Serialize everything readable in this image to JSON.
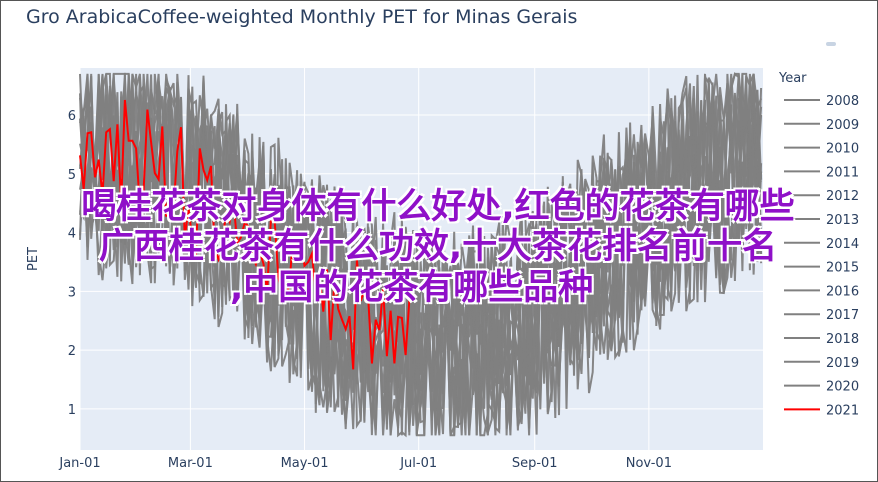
{
  "chart_data": {
    "type": "line",
    "title": "Gro ArabicaCoffee-weighted Monthly PET for Minas Gerais",
    "ylabel": "PET",
    "xlabel": "",
    "x_ticks": [
      "Jan-01",
      "Mar-01",
      "May-01",
      "Jul-01",
      "Sep-01",
      "Nov-01"
    ],
    "y_ticks": [
      1,
      2,
      3,
      4,
      5,
      6
    ],
    "ylim": [
      0.3,
      6.8
    ],
    "xlim_days": [
      0,
      365
    ],
    "legend_title": "Year",
    "legend_position": "right",
    "grid": true,
    "series": [
      {
        "name": "2008",
        "color": "#808080"
      },
      {
        "name": "2009",
        "color": "#808080"
      },
      {
        "name": "2010",
        "color": "#808080"
      },
      {
        "name": "2011",
        "color": "#808080"
      },
      {
        "name": "2012",
        "color": "#808080"
      },
      {
        "name": "2013",
        "color": "#808080"
      },
      {
        "name": "2014",
        "color": "#808080"
      },
      {
        "name": "2015",
        "color": "#808080"
      },
      {
        "name": "2016",
        "color": "#808080"
      },
      {
        "name": "2017",
        "color": "#808080"
      },
      {
        "name": "2018",
        "color": "#808080"
      },
      {
        "name": "2019",
        "color": "#808080"
      },
      {
        "name": "2020",
        "color": "#808080"
      },
      {
        "name": "2021",
        "color": "#ff0000"
      }
    ]
  },
  "overlay": {
    "line1": "喝桂花茶对身体有什么好处,红色的花茶有哪些",
    "line2": "广西桂花茶有什么功效,十大茶花排名前十名",
    "line3": ",中国的花茶有哪些品种"
  }
}
